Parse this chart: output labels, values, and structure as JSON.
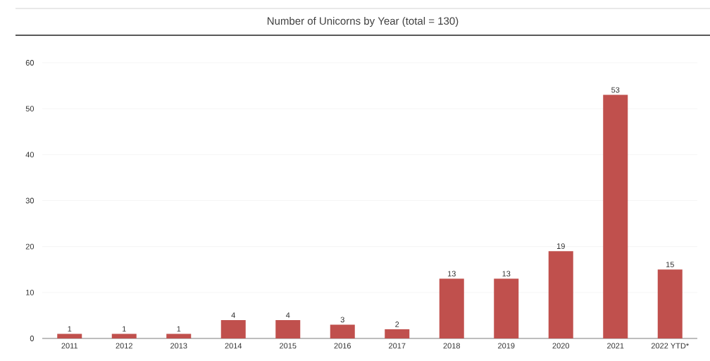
{
  "chart_data": {
    "type": "bar",
    "title": "Number of Unicorns by Year (total = 130)",
    "categories": [
      "2011",
      "2012",
      "2013",
      "2014",
      "2015",
      "2016",
      "2017",
      "2018",
      "2019",
      "2020",
      "2021",
      "2022 YTD*"
    ],
    "values": [
      1,
      1,
      1,
      4,
      4,
      3,
      2,
      13,
      13,
      19,
      53,
      15
    ],
    "color": "#c0504d",
    "ylim": [
      0,
      60
    ],
    "yticks": [
      0,
      10,
      20,
      30,
      40,
      50,
      60
    ],
    "grid": "y",
    "data_labels": true
  }
}
